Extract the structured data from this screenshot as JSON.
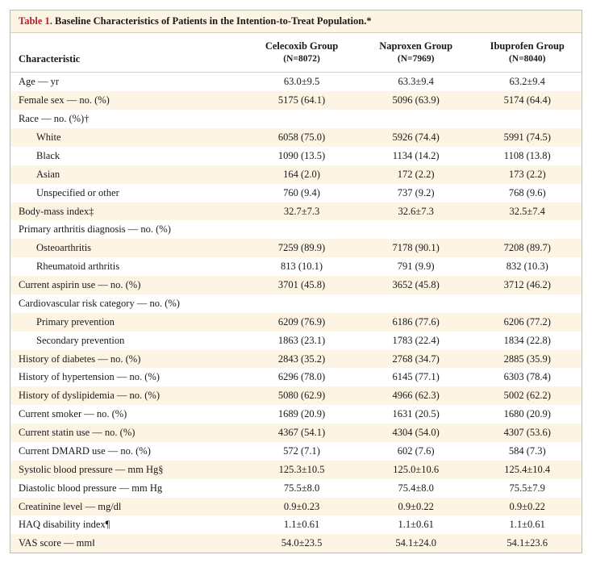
{
  "table": {
    "number": "Table 1.",
    "title": "Baseline Characteristics of Patients in the Intention-to-Treat Population.*",
    "row_header_label": "Characteristic",
    "columns": [
      {
        "name": "Celecoxib Group",
        "n": "(N=8072)"
      },
      {
        "name": "Naproxen Group",
        "n": "(N=7969)"
      },
      {
        "name": "Ibuprofen Group",
        "n": "(N=8040)"
      }
    ],
    "rows": [
      {
        "label": "Age — yr",
        "indent": 0,
        "cells": [
          "63.0±9.5",
          "63.3±9.4",
          "63.2±9.4"
        ]
      },
      {
        "label": "Female sex — no. (%)",
        "indent": 0,
        "cells": [
          "5175 (64.1)",
          "5096 (63.9)",
          "5174 (64.4)"
        ]
      },
      {
        "label": "Race — no. (%)†",
        "indent": 0,
        "cells": [
          "",
          "",
          ""
        ]
      },
      {
        "label": "White",
        "indent": 1,
        "cells": [
          "6058 (75.0)",
          "5926 (74.4)",
          "5991 (74.5)"
        ]
      },
      {
        "label": "Black",
        "indent": 1,
        "cells": [
          "1090 (13.5)",
          "1134 (14.2)",
          "1108 (13.8)"
        ]
      },
      {
        "label": "Asian",
        "indent": 1,
        "cells": [
          "164 (2.0)",
          "172 (2.2)",
          "173 (2.2)"
        ]
      },
      {
        "label": "Unspecified or other",
        "indent": 1,
        "cells": [
          "760 (9.4)",
          "737 (9.2)",
          "768 (9.6)"
        ]
      },
      {
        "label": "Body-mass index‡",
        "indent": 0,
        "cells": [
          "32.7±7.3",
          "32.6±7.3",
          "32.5±7.4"
        ]
      },
      {
        "label": "Primary arthritis diagnosis — no. (%)",
        "indent": 0,
        "cells": [
          "",
          "",
          ""
        ]
      },
      {
        "label": "Osteoarthritis",
        "indent": 1,
        "cells": [
          "7259 (89.9)",
          "7178 (90.1)",
          "7208 (89.7)"
        ]
      },
      {
        "label": "Rheumatoid arthritis",
        "indent": 1,
        "cells": [
          "813 (10.1)",
          "791 (9.9)",
          "832 (10.3)"
        ]
      },
      {
        "label": "Current aspirin use — no. (%)",
        "indent": 0,
        "cells": [
          "3701 (45.8)",
          "3652 (45.8)",
          "3712 (46.2)"
        ]
      },
      {
        "label": "Cardiovascular risk category — no. (%)",
        "indent": 0,
        "cells": [
          "",
          "",
          ""
        ]
      },
      {
        "label": "Primary prevention",
        "indent": 1,
        "cells": [
          "6209 (76.9)",
          "6186 (77.6)",
          "6206 (77.2)"
        ]
      },
      {
        "label": "Secondary prevention",
        "indent": 1,
        "cells": [
          "1863 (23.1)",
          "1783 (22.4)",
          "1834 (22.8)"
        ]
      },
      {
        "label": "History of diabetes — no. (%)",
        "indent": 0,
        "cells": [
          "2843 (35.2)",
          "2768 (34.7)",
          "2885 (35.9)"
        ]
      },
      {
        "label": "History of hypertension — no. (%)",
        "indent": 0,
        "cells": [
          "6296 (78.0)",
          "6145 (77.1)",
          "6303 (78.4)"
        ]
      },
      {
        "label": "History of dyslipidemia — no. (%)",
        "indent": 0,
        "cells": [
          "5080 (62.9)",
          "4966 (62.3)",
          "5002 (62.2)"
        ]
      },
      {
        "label": "Current smoker — no. (%)",
        "indent": 0,
        "cells": [
          "1689 (20.9)",
          "1631 (20.5)",
          "1680 (20.9)"
        ]
      },
      {
        "label": "Current statin use — no. (%)",
        "indent": 0,
        "cells": [
          "4367 (54.1)",
          "4304 (54.0)",
          "4307 (53.6)"
        ]
      },
      {
        "label": "Current DMARD use — no. (%)",
        "indent": 0,
        "cells": [
          "572 (7.1)",
          "602 (7.6)",
          "584 (7.3)"
        ]
      },
      {
        "label": "Systolic blood pressure — mm Hg§",
        "indent": 0,
        "cells": [
          "125.3±10.5",
          "125.0±10.6",
          "125.4±10.4"
        ]
      },
      {
        "label": "Diastolic blood pressure — mm Hg",
        "indent": 0,
        "cells": [
          "75.5±8.0",
          "75.4±8.0",
          "75.5±7.9"
        ]
      },
      {
        "label": "Creatinine level — mg/dl",
        "indent": 0,
        "cells": [
          "0.9±0.23",
          "0.9±0.22",
          "0.9±0.22"
        ]
      },
      {
        "label": "HAQ disability index¶",
        "indent": 0,
        "cells": [
          "1.1±0.61",
          "1.1±0.61",
          "1.1±0.61"
        ]
      },
      {
        "label": "VAS score — mm‖",
        "indent": 0,
        "cells": [
          "54.0±23.5",
          "54.1±24.0",
          "54.1±23.6"
        ]
      }
    ],
    "stripe_color": "#fdf4e3",
    "border_color": "#bcbcbc"
  }
}
